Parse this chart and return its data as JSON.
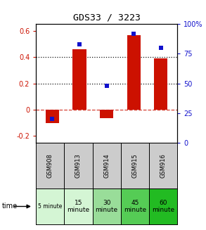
{
  "title": "GDS33 / 3223",
  "samples": [
    "GSM908",
    "GSM913",
    "GSM914",
    "GSM915",
    "GSM916"
  ],
  "time_labels_line1": [
    "5 minute",
    "15",
    "30",
    "45",
    "60"
  ],
  "time_labels_line2": [
    "",
    "minute",
    "minute",
    "minute",
    "minute"
  ],
  "time_colors": [
    "#d4f5d4",
    "#d4f5d4",
    "#99dd99",
    "#55cc55",
    "#22bb22"
  ],
  "log_ratio": [
    -0.1,
    0.46,
    -0.065,
    0.565,
    0.39
  ],
  "percentile_rank_pct": [
    20,
    83,
    48,
    92,
    80
  ],
  "ylim_left": [
    -0.25,
    0.65
  ],
  "ylim_right": [
    0,
    100
  ],
  "left_ticks": [
    -0.2,
    0,
    0.2,
    0.4,
    0.6
  ],
  "right_ticks": [
    0,
    25,
    50,
    75,
    100
  ],
  "right_tick_labels": [
    "0",
    "25",
    "50",
    "75",
    "100%"
  ],
  "bar_color": "#cc1100",
  "dot_color": "#1111cc",
  "zero_line_color": "#cc1100",
  "dotted_line_color": "#111111",
  "bg_color": "#ffffff",
  "sample_bg": "#cccccc",
  "left_tick_color": "#cc1100",
  "right_tick_color": "#1111cc",
  "hline_vals": [
    0.2,
    0.4
  ],
  "bar_width": 0.5
}
